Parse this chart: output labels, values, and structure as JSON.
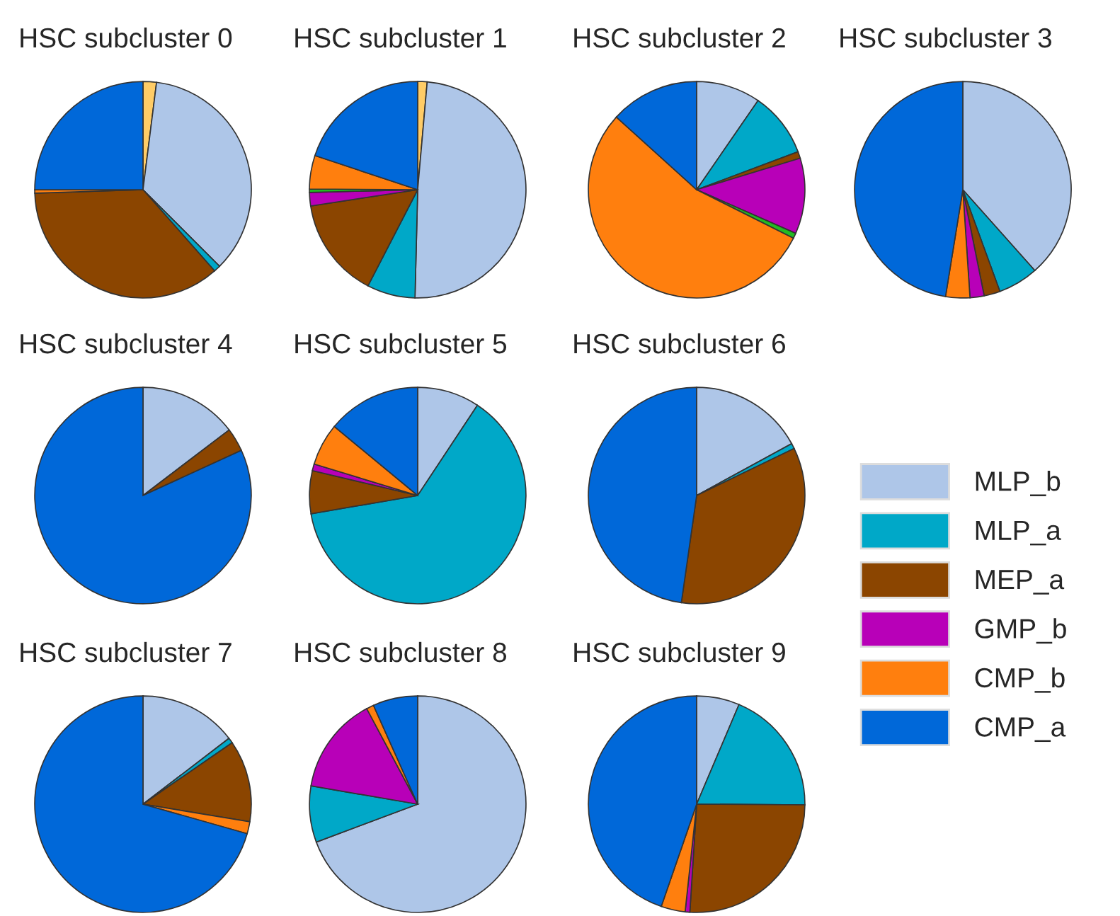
{
  "chart_data": [
    {
      "type": "pie",
      "title": "HSC subcluster 0",
      "categories": [
        null,
        "MLP_b",
        "MLP_a",
        "MEP_a",
        "GMP_b",
        null,
        "CMP_b",
        "CMP_a"
      ],
      "values": [
        2,
        35.5,
        1,
        36,
        0,
        0,
        0.5,
        25
      ],
      "colors": [
        "#ffcc66",
        "#aec6e8",
        "#00a8c8",
        "#8b4500",
        "#b800b8",
        "#22bb22",
        "#ff7f0e",
        "#0068d9"
      ],
      "legend": "right"
    },
    {
      "type": "pie",
      "title": "HSC subcluster 1",
      "categories": [
        null,
        null,
        null,
        null,
        null,
        null,
        null,
        null
      ],
      "values": [
        1.4,
        49,
        7.2,
        15,
        2,
        0.5,
        5,
        19.9
      ],
      "colors": [
        "#ffcc66",
        "#aec6e8",
        "#00a8c8",
        "#8b4500",
        "#b800b8",
        "#22bb22",
        "#ff7f0e",
        "#0068d9"
      ]
    },
    {
      "type": "pie",
      "title": "HSC subcluster 2",
      "categories": [
        null,
        null,
        null,
        null,
        null,
        null,
        null,
        null
      ],
      "values": [
        0,
        9.6,
        9.7,
        1,
        11.3,
        0.8,
        54.3,
        13.3
      ],
      "colors": [
        "#ffcc66",
        "#aec6e8",
        "#00a8c8",
        "#8b4500",
        "#b800b8",
        "#22bb22",
        "#ff7f0e",
        "#0068d9"
      ]
    },
    {
      "type": "pie",
      "title": "HSC subcluster 3",
      "categories": [
        null,
        null,
        null,
        null,
        null,
        null,
        null,
        null
      ],
      "values": [
        0,
        38.3,
        6,
        2.4,
        2.1,
        null,
        3.6,
        47.3
      ],
      "colors": [
        "#ffcc66",
        "#aec6e8",
        "#00a8c8",
        "#8b4500",
        "#b800b8",
        "#22bb22",
        "#ff7f0e",
        "#0068d9"
      ]
    },
    {
      "type": "pie",
      "title": "HSC subcluster 4",
      "categories": [
        null,
        null,
        null,
        null,
        null,
        null,
        null,
        null
      ],
      "values": [
        0,
        14.6,
        null,
        3.5,
        0,
        0,
        0,
        81.6
      ],
      "colors": [
        "#ffcc66",
        "#aec6e8",
        "#00a8c8",
        "#8b4500",
        "#b800b8",
        "#22bb22",
        "#ff7f0e",
        "#0068d9"
      ]
    },
    {
      "type": "pie",
      "title": "HSC subcluster 5",
      "categories": [
        null,
        null,
        null,
        null,
        null,
        null,
        null,
        null
      ],
      "values": [
        0,
        9.3,
        63,
        6.4,
        1,
        0,
        6.3,
        14
      ],
      "colors": [
        "#ffcc66",
        "#aec6e8",
        "#00a8c8",
        "#8b4500",
        "#b800b8",
        "#22bb22",
        "#ff7f0e",
        "#0068d9"
      ]
    },
    {
      "type": "pie",
      "title": "HSC subcluster 6",
      "categories": [
        null,
        null,
        null,
        null,
        null,
        null,
        null,
        null
      ],
      "values": [
        0,
        17,
        0.8,
        34.3,
        0,
        0,
        null,
        47.6
      ],
      "colors": [
        "#ffcc66",
        "#aec6e8",
        "#00a8c8",
        "#8b4500",
        "#b800b8",
        "#22bb22",
        "#ff7f0e",
        "#0068d9"
      ]
    },
    {
      "type": "pie",
      "title": "HSC subcluster 7",
      "categories": [
        null,
        null,
        null,
        null,
        null,
        null,
        null,
        null
      ],
      "values": [
        0,
        14.6,
        0.8,
        12.2,
        0,
        0,
        1.8,
        70.6
      ],
      "colors": [
        "#ffcc66",
        "#aec6e8",
        "#00a8c8",
        "#8b4500",
        "#b800b8",
        "#22bb22",
        "#ff7f0e",
        "#0068d9"
      ]
    },
    {
      "type": "pie",
      "title": "HSC subcluster 8",
      "categories": [
        null,
        null,
        null,
        null,
        null,
        null,
        null,
        null
      ],
      "values": [
        0,
        69.3,
        8.4,
        0,
        14.5,
        0,
        1.1,
        6.7
      ],
      "colors": [
        "#ffcc66",
        "#aec6e8",
        "#00a8c8",
        "#8b4500",
        "#b800b8",
        "#22bb22",
        "#ff7f0e",
        "#0068d9"
      ]
    },
    {
      "type": "pie",
      "title": "HSC subcluster 9",
      "categories": [
        null,
        null,
        null,
        null,
        null,
        null,
        null,
        null
      ],
      "values": [
        0,
        6.4,
        18.7,
        25.9,
        0.7,
        0,
        3.6,
        44.7
      ],
      "colors": [
        "#ffcc66",
        "#aec6e8",
        "#00a8c8",
        "#8b4500",
        "#b800b8",
        "#22bb22",
        "#ff7f0e",
        "#0068d9"
      ]
    }
  ]
}
